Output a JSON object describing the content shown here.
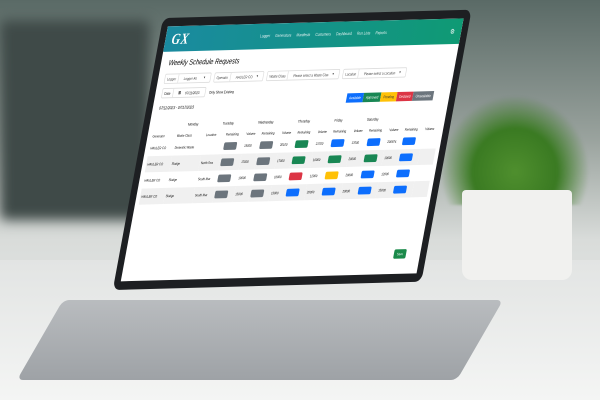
{
  "app": {
    "logo": "GX",
    "nav": [
      "Logger",
      "Generators",
      "Manifests",
      "Customers",
      "Dashboard",
      "Run Lists",
      "Reports"
    ],
    "page_title": "Weekly Schedule Requests"
  },
  "filters": {
    "logger_label": "Logger",
    "logger_value": "Logger All",
    "operator_label": "Operator",
    "operator_value": "HAULER CO",
    "waste_label": "Waste Class",
    "waste_value": "Please select a Waste Clas",
    "location_label": "Location",
    "location_value": "Please select a Location",
    "date_label": "Date",
    "date_value": "07/11/2023",
    "only_existing": "Only Show Existing"
  },
  "range": "07/11/2023 - 07/17/2023",
  "legend": [
    {
      "label": "Available",
      "color": "#0d6efd"
    },
    {
      "label": "Approved",
      "color": "#198754"
    },
    {
      "label": "Pending",
      "color": "#ffc107"
    },
    {
      "label": "Declined",
      "color": "#dc3545"
    },
    {
      "label": "Unavailable",
      "color": "#6c757d"
    }
  ],
  "days": [
    "Monday",
    "Tuesday",
    "Wednesday",
    "Thursday",
    "Friday",
    "Saturday"
  ],
  "columns": {
    "generator": "Generator",
    "waste": "Waste Class",
    "location": "Location",
    "remaining": "Remaining",
    "volume": "Volume"
  },
  "rows": [
    {
      "generator": "HAULER CO",
      "waste": "Domestic Waste",
      "location": "",
      "cells": [
        [
          "Unavailable",
          "15000"
        ],
        [
          "Unavailable",
          "20100"
        ],
        [
          "Approved",
          "21700"
        ],
        [
          "Available",
          "17000"
        ],
        [
          "Available",
          "200974"
        ],
        [
          "Available",
          ""
        ]
      ]
    },
    {
      "generator": "HAULER CO",
      "waste": "Sludge",
      "location": "North Sea",
      "cells": [
        [
          "Unavailable",
          "17000"
        ],
        [
          "Unavailable",
          "17000"
        ],
        [
          "Approved",
          "10000"
        ],
        [
          "Approved",
          "20000"
        ],
        [
          "Approved",
          "10000"
        ],
        [
          "Available",
          ""
        ]
      ]
    },
    {
      "generator": "HAULER CO",
      "waste": "Sludge",
      "location": "South Mar",
      "cells": [
        [
          "Unavailable",
          "10000"
        ],
        [
          "Unavailable",
          "10000"
        ],
        [
          "Declined",
          "12000"
        ],
        [
          "Pending",
          "20000"
        ],
        [
          "Available",
          "12000"
        ],
        [
          "Available",
          ""
        ]
      ]
    },
    {
      "generator": "HAULER CO",
      "waste": "Sludge",
      "location": "South Mar",
      "cells": [
        [
          "Unavailable",
          "15000"
        ],
        [
          "Unavailable",
          "15000"
        ],
        [
          "Available",
          "20000"
        ],
        [
          "Available",
          "20000"
        ],
        [
          "Available",
          "15000"
        ],
        [
          "Available",
          ""
        ]
      ]
    }
  ],
  "save_label": "Save"
}
